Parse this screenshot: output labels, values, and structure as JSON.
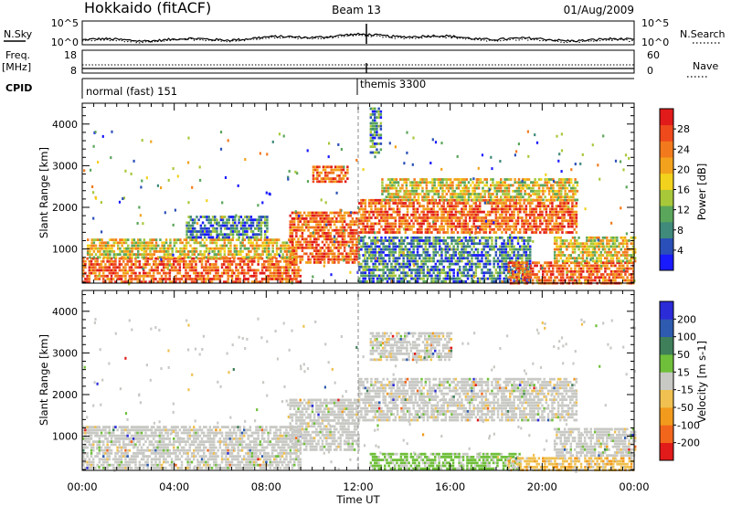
{
  "header": {
    "station": "Hokkaido (fitACF)",
    "beam": "Beam 13",
    "date": "01/Aug/2009"
  },
  "top_panels": {
    "nsky": {
      "left_label": "N.Sky",
      "left_ticks": [
        "10^5",
        "10^0"
      ],
      "right_ticks": [
        "10^5",
        "10^0"
      ],
      "right_label": "N.Search"
    },
    "freq": {
      "left_label_1": "Freq.",
      "left_label_2": "[MHz]",
      "left_ticks": [
        "18",
        "8"
      ],
      "right_ticks": [
        "60",
        "0"
      ],
      "right_label": "Nave"
    },
    "cpid": {
      "label": "CPID",
      "segments": [
        {
          "name": "normal (fast) 151",
          "start_hour": 0,
          "end_hour": 12
        },
        {
          "name": "themis 3300",
          "start_hour": 12,
          "end_hour": 24
        }
      ]
    }
  },
  "x_axis": {
    "title": "Time UT",
    "ticks": [
      "00:00",
      "04:00",
      "08:00",
      "12:00",
      "16:00",
      "20:00",
      "00:00"
    ]
  },
  "chart_data": [
    {
      "type": "heatmap",
      "name": "power",
      "ylabel": "Slant Range [km]",
      "xlim": [
        0,
        24
      ],
      "ylim": [
        180,
        4500
      ],
      "yticks": [
        "1000",
        "2000",
        "3000",
        "4000"
      ],
      "colorbar": {
        "label": "Power [dB]",
        "ticks": [
          "28",
          "24",
          "20",
          "16",
          "12",
          "8",
          "4"
        ],
        "range": [
          0,
          32
        ]
      },
      "regions": [
        {
          "t0": 0.0,
          "t1": 9.5,
          "r0": 200,
          "r1": 800,
          "level": "high"
        },
        {
          "t0": 0.2,
          "t1": 9.2,
          "r0": 800,
          "r1": 1250,
          "level": "mid"
        },
        {
          "t0": 4.5,
          "t1": 8.0,
          "r0": 1300,
          "r1": 1800,
          "level": "low"
        },
        {
          "t0": 9.0,
          "t1": 12.0,
          "r0": 700,
          "r1": 1900,
          "level": "high"
        },
        {
          "t0": 10.0,
          "t1": 11.5,
          "r0": 2600,
          "r1": 3000,
          "level": "high"
        },
        {
          "t0": 12.0,
          "t1": 21.5,
          "r0": 1400,
          "r1": 2200,
          "level": "high"
        },
        {
          "t0": 13.0,
          "t1": 21.5,
          "r0": 2200,
          "r1": 2700,
          "level": "mid"
        },
        {
          "t0": 12.0,
          "t1": 19.5,
          "r0": 200,
          "r1": 1300,
          "level": "low"
        },
        {
          "t0": 18.5,
          "t1": 24.0,
          "r0": 200,
          "r1": 700,
          "level": "high"
        },
        {
          "t0": 20.5,
          "t1": 24.0,
          "r0": 700,
          "r1": 1300,
          "level": "mid"
        },
        {
          "t0": 12.5,
          "t1": 13.0,
          "r0": 3300,
          "r1": 4400,
          "level": "low"
        }
      ]
    },
    {
      "type": "heatmap",
      "name": "velocity",
      "ylabel": "Slant Range [km]",
      "xlim": [
        0,
        24
      ],
      "ylim": [
        180,
        4500
      ],
      "yticks": [
        "1000",
        "2000",
        "3000",
        "4000"
      ],
      "colorbar": {
        "label": "Velocity [m s-1]",
        "ticks": [
          "200",
          "100",
          "50",
          "15",
          "-15",
          "-50",
          "-100",
          "-200"
        ],
        "range": [
          -250,
          250
        ]
      },
      "regions": [
        {
          "t0": 0.0,
          "t1": 9.5,
          "r0": 200,
          "r1": 1250,
          "level": "neutral"
        },
        {
          "t0": 9.0,
          "t1": 12.0,
          "r0": 700,
          "r1": 1900,
          "level": "neutral"
        },
        {
          "t0": 12.0,
          "t1": 21.5,
          "r0": 1400,
          "r1": 2400,
          "level": "neutral"
        },
        {
          "t0": 12.5,
          "t1": 19.0,
          "r0": 200,
          "r1": 600,
          "level": "green"
        },
        {
          "t0": 18.5,
          "t1": 24.0,
          "r0": 200,
          "r1": 500,
          "level": "orange"
        },
        {
          "t0": 20.5,
          "t1": 24.0,
          "r0": 500,
          "r1": 1200,
          "level": "neutral"
        },
        {
          "t0": 12.5,
          "t1": 16.0,
          "r0": 2800,
          "r1": 3500,
          "level": "neutral"
        }
      ]
    }
  ]
}
